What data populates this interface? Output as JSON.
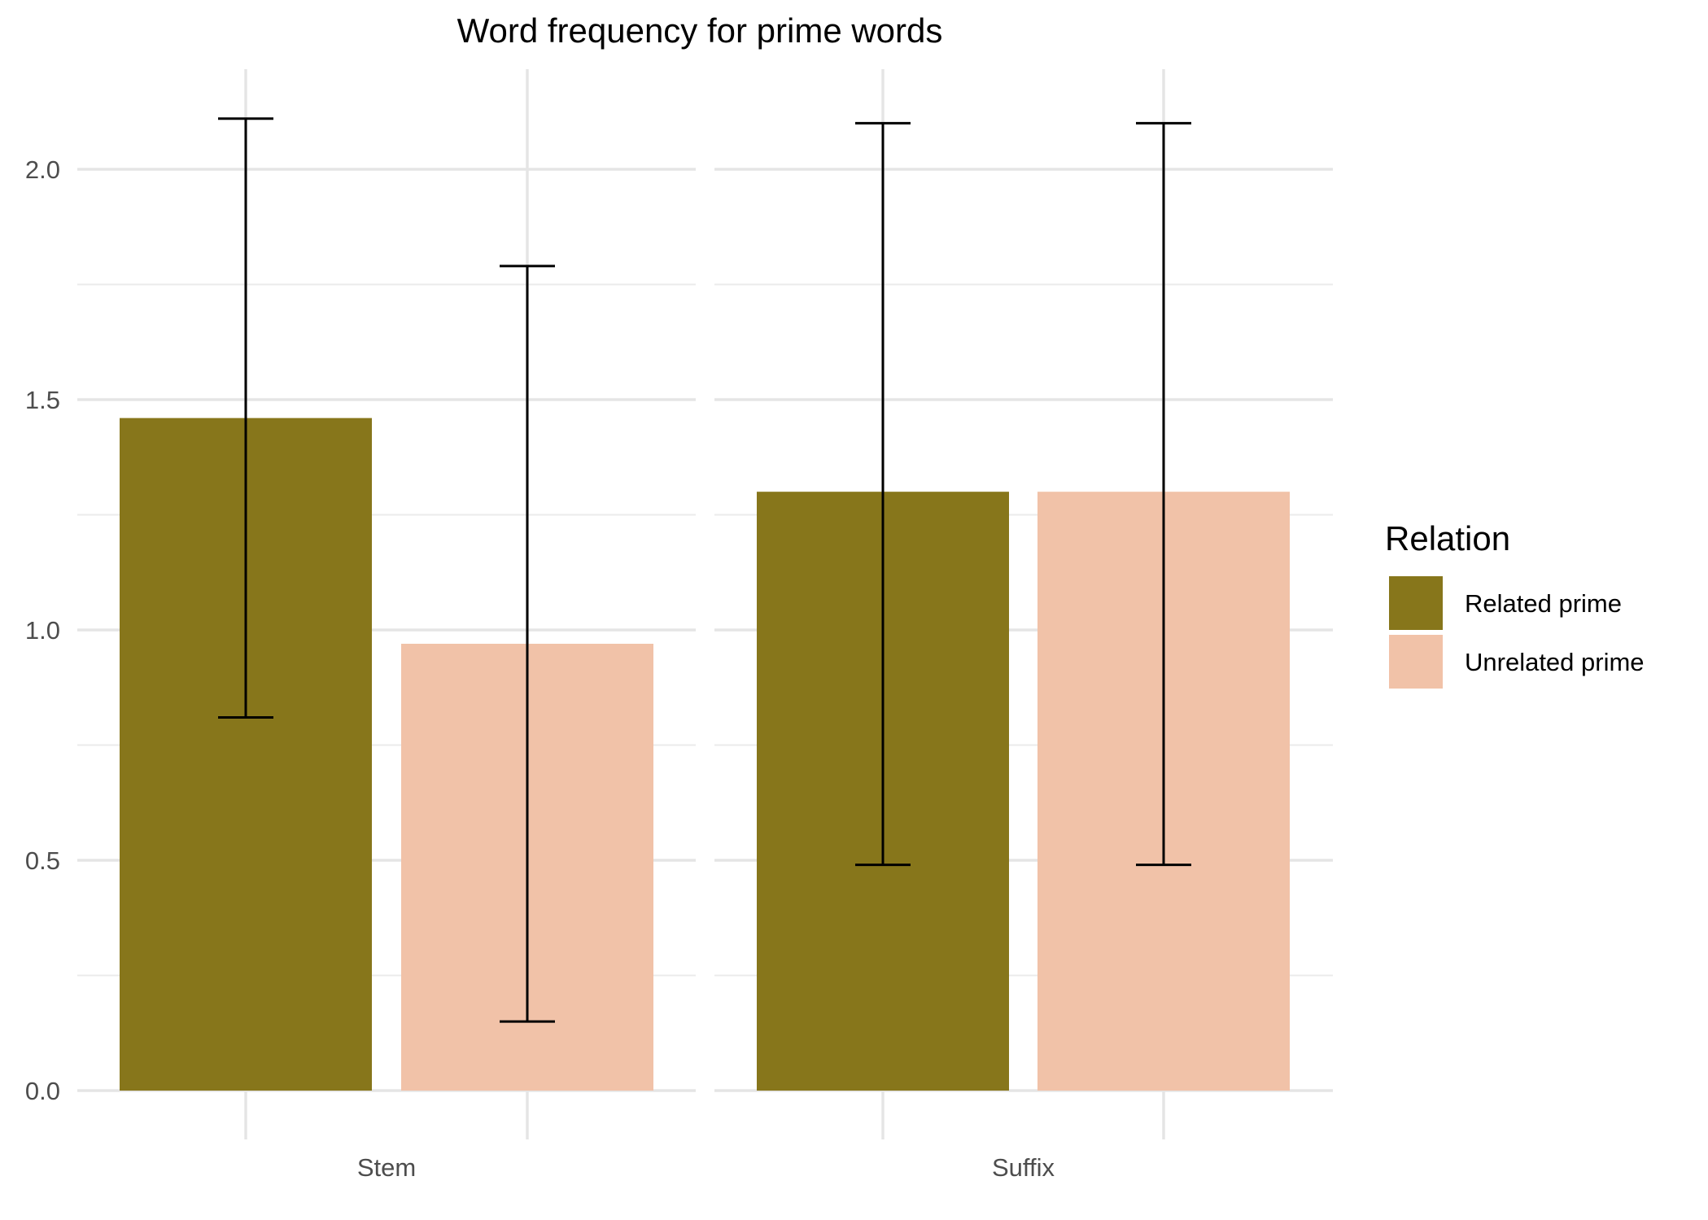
{
  "chart_data": {
    "type": "bar",
    "title": "Word frequency for prime words",
    "xlabel": "",
    "ylabel": "",
    "ylim": [
      0,
      2.2
    ],
    "y_ticks": [
      "0.0",
      "0.5",
      "1.0",
      "1.5",
      "2.0"
    ],
    "y_tick_values": [
      0,
      0.5,
      1.0,
      1.5,
      2.0
    ],
    "grid": true,
    "legend_position": "right",
    "legend_title": "Relation",
    "panels": [
      {
        "label": "Stem",
        "bars": [
          {
            "series": "Related prime",
            "value": 1.46,
            "error_low": 0.81,
            "error_high": 2.11
          },
          {
            "series": "Unrelated prime",
            "value": 0.97,
            "error_low": 0.15,
            "error_high": 1.79
          }
        ]
      },
      {
        "label": "Suffix",
        "bars": [
          {
            "series": "Related prime",
            "value": 1.3,
            "error_low": 0.49,
            "error_high": 2.1
          },
          {
            "series": "Unrelated prime",
            "value": 1.3,
            "error_low": 0.49,
            "error_high": 2.1
          }
        ]
      }
    ],
    "series": [
      {
        "name": "Related prime",
        "color": "#87761b"
      },
      {
        "name": "Unrelated prime",
        "color": "#f1c2a8"
      }
    ]
  }
}
